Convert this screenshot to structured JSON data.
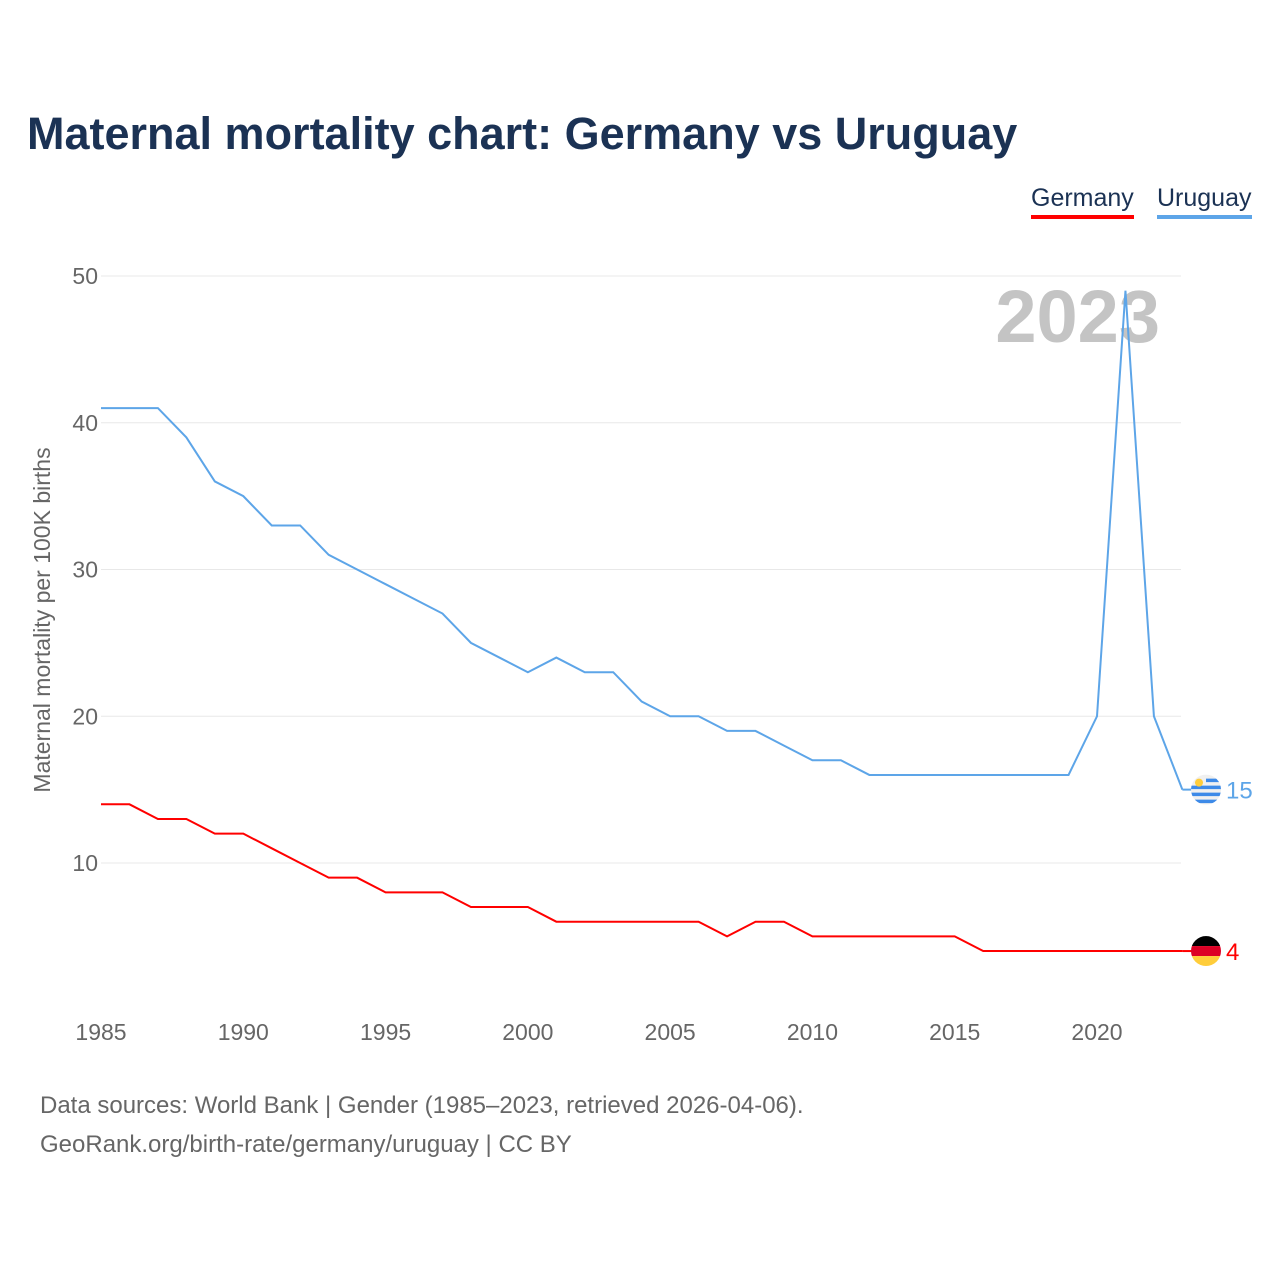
{
  "title": "Maternal mortality chart: Germany vs Uruguay",
  "source_line1": "Data sources: World Bank | Gender (1985–2023, retrieved 2026-04-06).",
  "source_line2": "GeoRank.org/birth-rate/germany/uruguay | CC BY",
  "chart_data": {
    "type": "line",
    "title": "Maternal mortality chart: Germany vs Uruguay",
    "ylabel": "Maternal mortality per 100K births",
    "xlabel": "",
    "year_watermark": "2023",
    "xlim": [
      1985,
      2023
    ],
    "ylim": [
      0,
      50
    ],
    "xticks": [
      1985,
      1990,
      1995,
      2000,
      2005,
      2010,
      2015,
      2020
    ],
    "yticks": [
      10,
      20,
      30,
      40,
      50
    ],
    "grid": true,
    "legend_position": "top-right",
    "x": [
      1985,
      1986,
      1987,
      1988,
      1989,
      1990,
      1991,
      1992,
      1993,
      1994,
      1995,
      1996,
      1997,
      1998,
      1999,
      2000,
      2001,
      2002,
      2003,
      2004,
      2005,
      2006,
      2007,
      2008,
      2009,
      2010,
      2011,
      2012,
      2013,
      2014,
      2015,
      2016,
      2017,
      2018,
      2019,
      2020,
      2021,
      2022,
      2023
    ],
    "series": [
      {
        "name": "Germany",
        "color": "#ff0000",
        "end_label": "4",
        "flag": "germany-flag",
        "values": [
          14,
          14,
          13,
          13,
          12,
          12,
          11,
          10,
          9,
          9,
          8,
          8,
          8,
          7,
          7,
          7,
          6,
          6,
          6,
          6,
          6,
          6,
          5,
          6,
          6,
          5,
          5,
          5,
          5,
          5,
          5,
          4,
          4,
          4,
          4,
          4,
          4,
          4,
          4
        ]
      },
      {
        "name": "Uruguay",
        "color": "#5da5e8",
        "end_label": "15",
        "flag": "uruguay-flag",
        "values": [
          41,
          41,
          41,
          39,
          36,
          35,
          33,
          33,
          31,
          30,
          29,
          28,
          27,
          25,
          24,
          23,
          24,
          23,
          23,
          21,
          20,
          20,
          19,
          19,
          18,
          17,
          17,
          16,
          16,
          16,
          16,
          16,
          16,
          16,
          16,
          20,
          49,
          20,
          15
        ]
      }
    ]
  }
}
